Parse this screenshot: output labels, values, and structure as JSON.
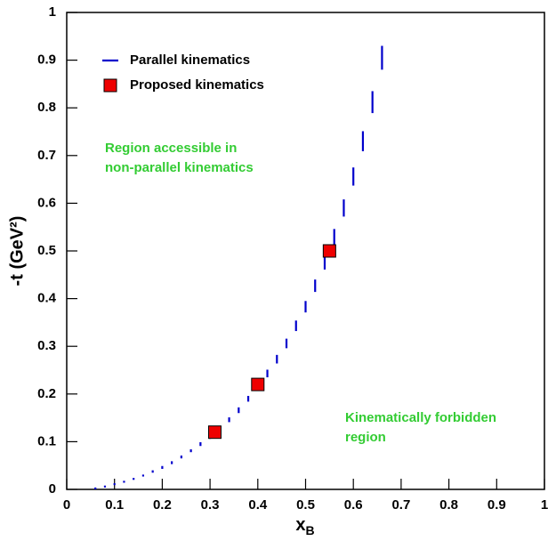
{
  "chart_data": {
    "type": "scatter",
    "xlabel": {
      "text": "x",
      "subscript": "B"
    },
    "ylabel": "-t (GeV²)",
    "xlim": [
      0,
      1
    ],
    "ylim": [
      0,
      1
    ],
    "xticks": [
      0,
      0.1,
      0.2,
      0.3,
      0.4,
      0.5,
      0.6,
      0.7,
      0.8,
      0.9,
      1
    ],
    "yticks": [
      0,
      0.1,
      0.2,
      0.3,
      0.4,
      0.5,
      0.6,
      0.7,
      0.8,
      0.9,
      1
    ],
    "series": [
      {
        "name": "Parallel kinematics",
        "color": "#0000cc",
        "x": [
          0.06,
          0.08,
          0.1,
          0.12,
          0.14,
          0.16,
          0.18,
          0.2,
          0.22,
          0.24,
          0.26,
          0.28,
          0.3,
          0.32,
          0.34,
          0.36,
          0.38,
          0.4,
          0.42,
          0.44,
          0.46,
          0.48,
          0.5,
          0.52,
          0.54,
          0.56,
          0.58,
          0.6,
          0.62,
          0.64,
          0.66
        ],
        "low": [
          0.0,
          0.004,
          0.009,
          0.014,
          0.02,
          0.027,
          0.035,
          0.043,
          0.053,
          0.065,
          0.078,
          0.091,
          0.106,
          0.122,
          0.141,
          0.16,
          0.184,
          0.208,
          0.235,
          0.264,
          0.296,
          0.332,
          0.371,
          0.414,
          0.461,
          0.514,
          0.572,
          0.637,
          0.709,
          0.789,
          0.88
        ],
        "high": [
          0.004,
          0.008,
          0.013,
          0.018,
          0.024,
          0.031,
          0.04,
          0.049,
          0.059,
          0.071,
          0.084,
          0.099,
          0.114,
          0.132,
          0.151,
          0.172,
          0.196,
          0.222,
          0.251,
          0.282,
          0.316,
          0.354,
          0.395,
          0.44,
          0.491,
          0.546,
          0.608,
          0.675,
          0.751,
          0.835,
          0.93
        ]
      },
      {
        "name": "Proposed kinematics",
        "color": "#ee0000",
        "x": [
          0.31,
          0.4,
          0.55
        ],
        "values": [
          0.12,
          0.22,
          0.5
        ]
      }
    ],
    "annotation_color": "#33cc33",
    "annotations": [
      [
        "Region accessible in",
        "non-parallel kinematics"
      ],
      [
        "Kinematically forbidden",
        "region"
      ]
    ]
  }
}
